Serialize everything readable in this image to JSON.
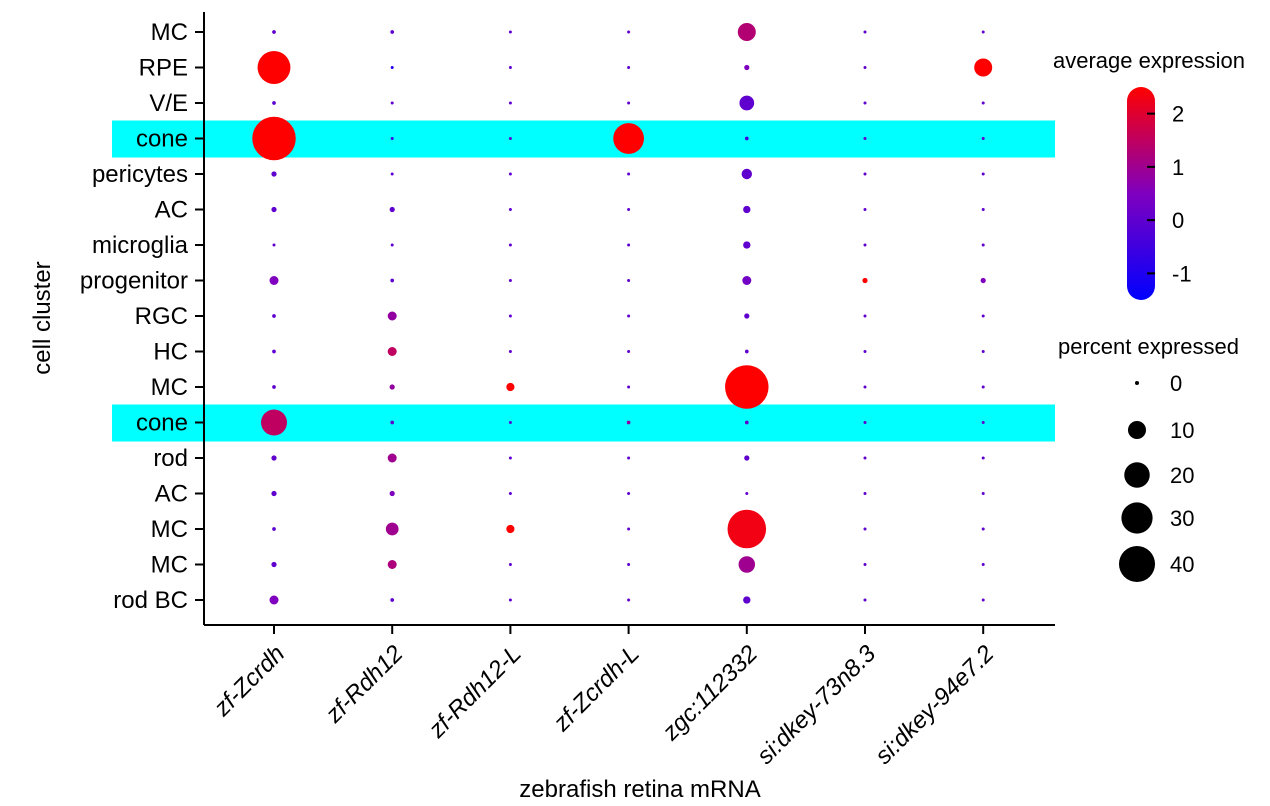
{
  "chart_data": {
    "type": "dot",
    "xlabel": "zebrafish retina mRNA",
    "ylabel": "cell cluster",
    "genes": [
      "zf-Zcrdh",
      "zf-Rdh12",
      "zf-Rdh12-L",
      "zf-Zcrdh-L",
      "zgc:112332",
      "si:dkey-73n8.3",
      "si:dkey-94e7.2"
    ],
    "clusters": [
      "MC",
      "RPE",
      "V/E",
      "cone",
      "pericytes",
      "AC",
      "microglia",
      "progenitor",
      "RGC",
      "HC",
      "MC",
      "cone",
      "rod",
      "AC",
      "MC",
      "MC",
      "rod BC"
    ],
    "highlighted_rows": [
      3,
      11
    ],
    "highlight_color": "#00FFFF",
    "percent_expressed": [
      [
        0.5,
        0.5,
        0.3,
        0.3,
        12,
        0.3,
        0.3
      ],
      [
        40,
        0.3,
        0.3,
        0.3,
        1,
        0.3,
        12
      ],
      [
        0.5,
        0.3,
        0.3,
        0.3,
        8,
        0.3,
        0.3
      ],
      [
        70,
        0.3,
        0.3,
        35,
        0.5,
        0.3,
        0.3
      ],
      [
        1,
        0.3,
        0.3,
        0.3,
        4,
        0.3,
        0.3
      ],
      [
        1,
        1,
        0.3,
        0.3,
        2,
        0.3,
        0.3
      ],
      [
        0.3,
        0.3,
        0.3,
        0.3,
        2,
        0.3,
        0.3
      ],
      [
        3,
        0.5,
        0.3,
        0.3,
        3,
        1,
        1
      ],
      [
        0.5,
        3,
        0.3,
        0.3,
        1,
        0.3,
        0.3
      ],
      [
        0.5,
        3,
        0.3,
        0.3,
        0.5,
        0.3,
        0.3
      ],
      [
        0.5,
        1,
        2.5,
        0.3,
        70,
        0.3,
        0.3
      ],
      [
        25,
        0.5,
        0.3,
        0.5,
        0.5,
        0.3,
        0.3
      ],
      [
        1,
        3,
        0.3,
        0.3,
        1,
        0.3,
        0.3
      ],
      [
        1,
        1,
        0.3,
        0.3,
        0.3,
        0.3,
        0.3
      ],
      [
        0.5,
        6,
        2.5,
        0.3,
        55,
        0.3,
        0.3
      ],
      [
        1,
        3,
        0.3,
        0.3,
        10,
        0.3,
        0.3
      ],
      [
        3,
        0.5,
        0.3,
        0.3,
        2,
        0.3,
        0.3
      ]
    ],
    "average_expression": [
      [
        0,
        0,
        0,
        0,
        1.3,
        0,
        0
      ],
      [
        2.5,
        -1,
        0,
        0,
        0.5,
        0,
        2.5
      ],
      [
        0,
        0,
        0,
        0,
        0,
        0,
        0
      ],
      [
        2.5,
        -0.5,
        0,
        2.5,
        -0.5,
        0,
        0
      ],
      [
        0,
        0,
        0,
        0,
        0,
        0,
        0
      ],
      [
        0,
        0,
        0,
        0,
        0,
        0,
        0
      ],
      [
        0,
        0,
        0,
        0,
        0,
        0,
        0
      ],
      [
        0.5,
        0,
        0,
        0,
        0.3,
        2.5,
        0.5
      ],
      [
        0,
        0.8,
        0,
        0,
        0,
        0,
        0
      ],
      [
        0,
        1.5,
        0,
        0,
        0,
        0,
        0
      ],
      [
        0,
        0.8,
        2.5,
        0,
        2.5,
        0,
        0
      ],
      [
        1.5,
        0,
        0,
        0.8,
        0,
        0,
        0
      ],
      [
        0,
        1,
        0,
        0,
        0,
        0,
        0
      ],
      [
        0,
        0.5,
        0,
        0,
        0,
        0,
        0
      ],
      [
        0,
        1,
        2.5,
        0,
        2.3,
        0,
        0
      ],
      [
        0,
        1.2,
        0,
        0,
        1,
        0,
        0
      ],
      [
        0.5,
        0,
        0,
        0,
        0,
        0,
        0
      ]
    ],
    "color_legend": {
      "title": "average expression",
      "ticks": [
        2,
        1,
        0,
        -1
      ],
      "range": [
        -1.5,
        2.5
      ],
      "low_color": "#0000FF",
      "high_color": "#FF0000"
    },
    "size_legend": {
      "title": "percent expressed",
      "values": [
        0,
        10,
        20,
        30,
        40
      ]
    }
  }
}
